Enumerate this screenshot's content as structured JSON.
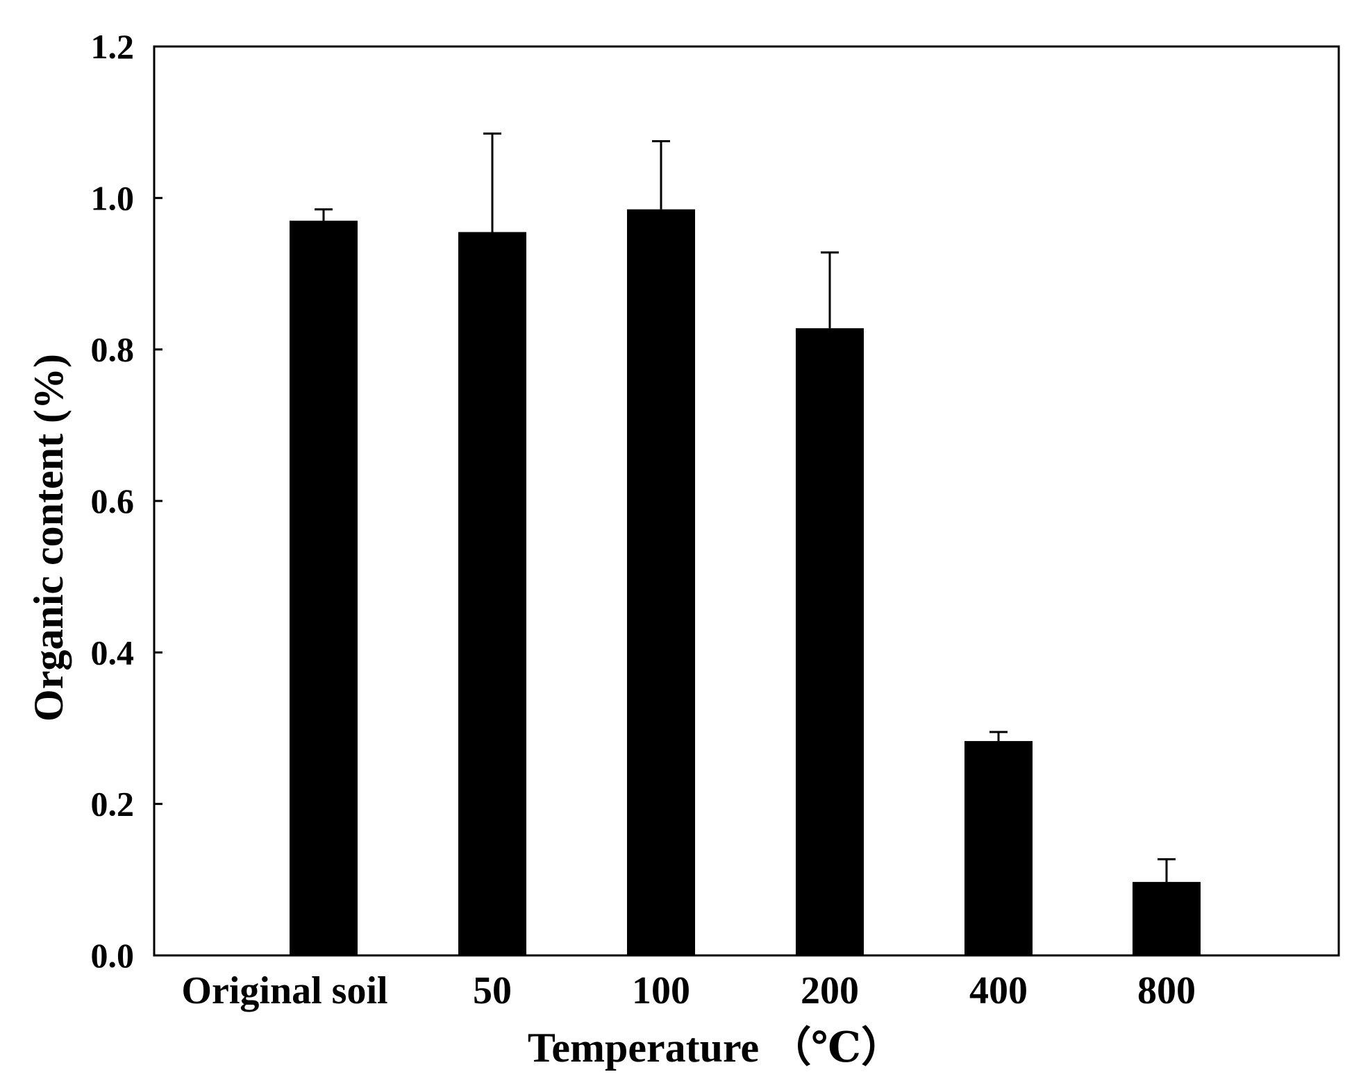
{
  "chart_data": {
    "type": "bar",
    "categories": [
      "Original soil",
      "50",
      "100",
      "200",
      "400",
      "800"
    ],
    "values": [
      0.97,
      0.955,
      0.985,
      0.828,
      0.283,
      0.097
    ],
    "error_upper": [
      0.985,
      1.085,
      1.075,
      0.928,
      0.295,
      0.127
    ],
    "xlabel": "Temperature （℃）",
    "ylabel": "Organic content (%)",
    "ylim": [
      0,
      1.2
    ],
    "yticks": [
      "0.0",
      "0.2",
      "0.4",
      "0.6",
      "0.8",
      "1.0",
      "1.2"
    ],
    "grid": false,
    "legend": false,
    "colors": {
      "bar": "#000000",
      "axis": "#000000",
      "background": "#ffffff"
    }
  }
}
